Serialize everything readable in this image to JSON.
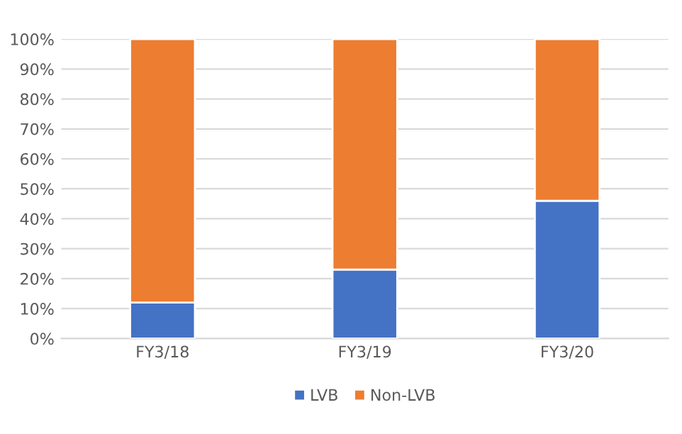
{
  "chart_data": {
    "type": "bar",
    "stacked": true,
    "categories": [
      "FY3/18",
      "FY3/19",
      "FY3/20"
    ],
    "series": [
      {
        "name": "LVB",
        "color": "#4472c4",
        "values": [
          12,
          23,
          46
        ]
      },
      {
        "name": "Non-LVB",
        "color": "#ed7d31",
        "values": [
          88,
          77,
          54
        ]
      }
    ],
    "ylim": [
      0,
      100
    ],
    "yticks": [
      {
        "value": 0,
        "label": "0%"
      },
      {
        "value": 10,
        "label": "10%"
      },
      {
        "value": 20,
        "label": "20%"
      },
      {
        "value": 30,
        "label": "30%"
      },
      {
        "value": 40,
        "label": "40%"
      },
      {
        "value": 50,
        "label": "50%"
      },
      {
        "value": 60,
        "label": "60%"
      },
      {
        "value": 70,
        "label": "70%"
      },
      {
        "value": 80,
        "label": "80%"
      },
      {
        "value": 90,
        "label": "90%"
      },
      {
        "value": 100,
        "label": "100%"
      }
    ],
    "grid": "y",
    "legend": "bottom"
  }
}
